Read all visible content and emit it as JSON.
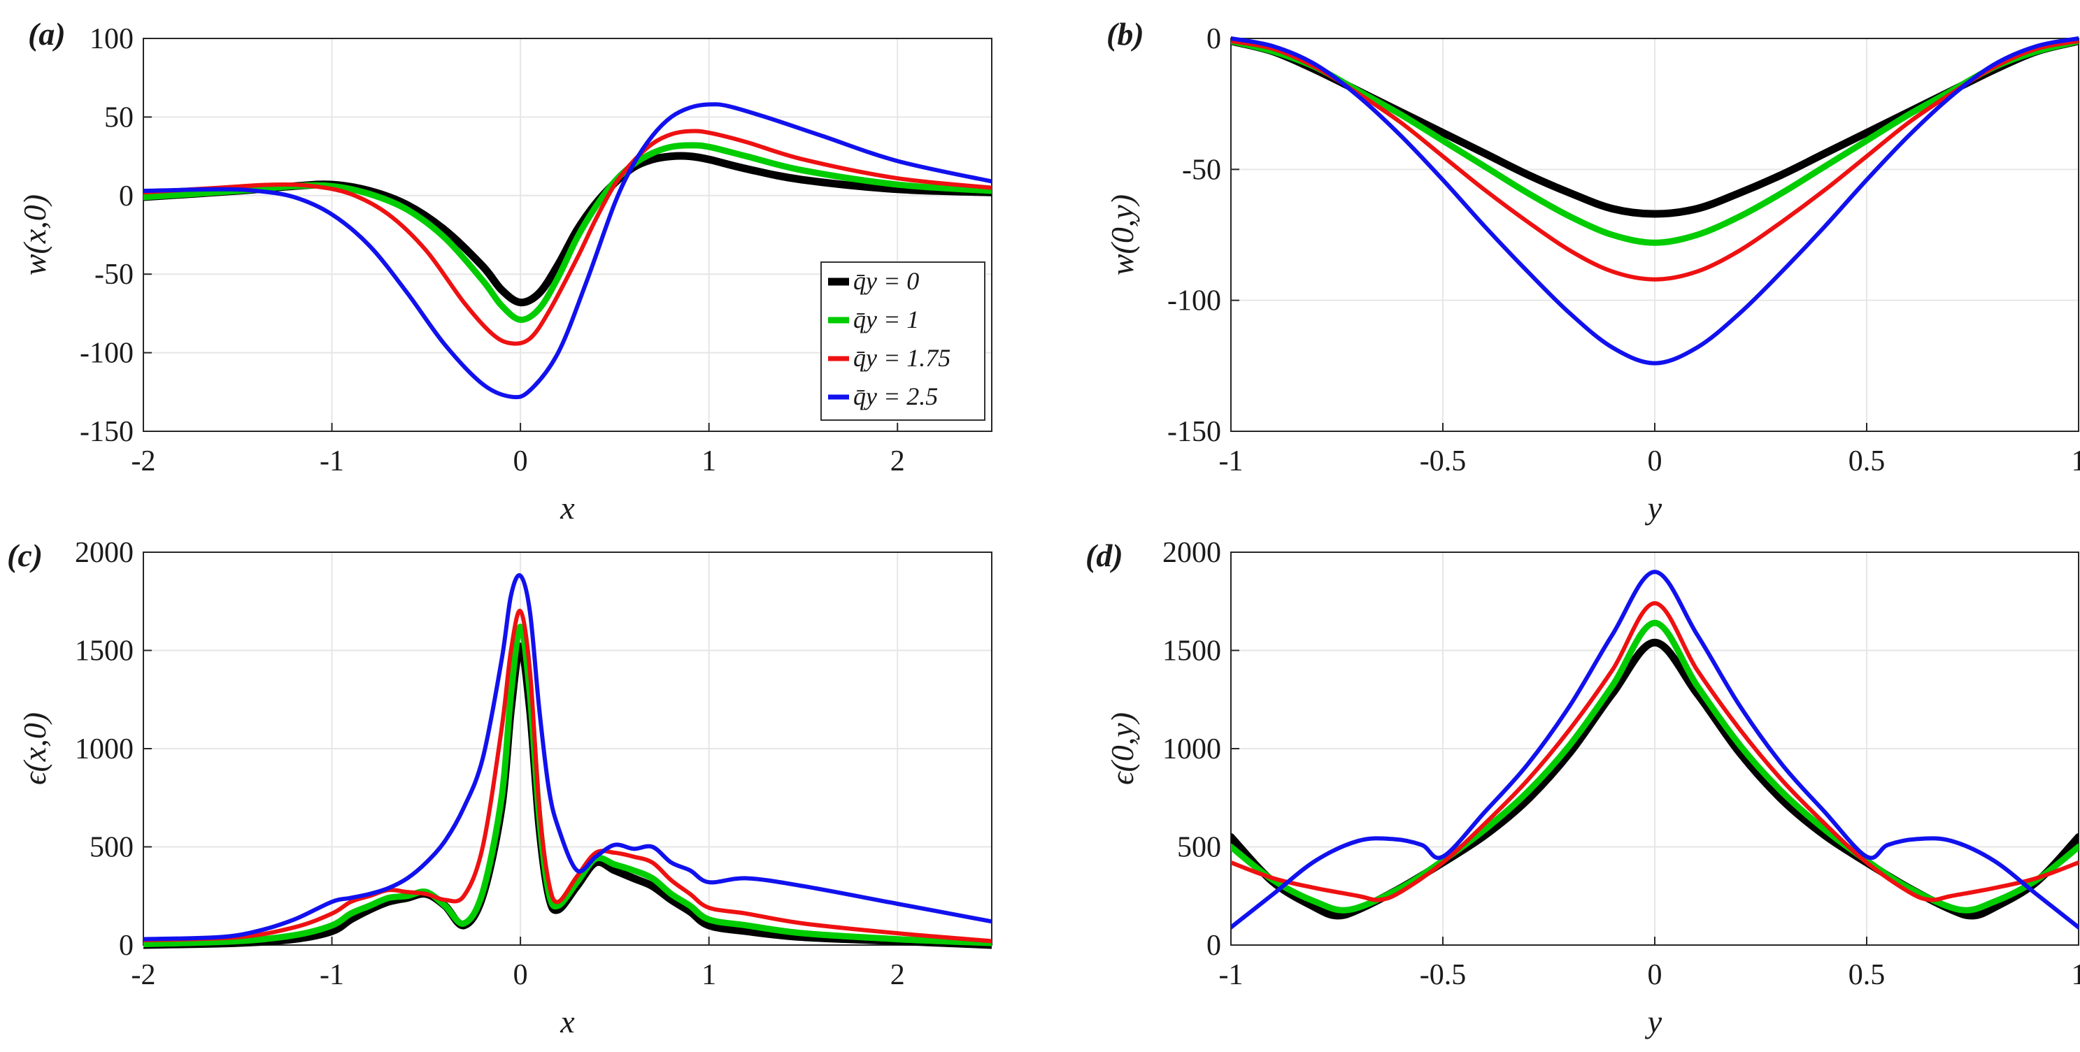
{
  "figure": {
    "legend_title": ""
  },
  "legend": {
    "entries": [
      {
        "label": "q̄y = 0",
        "color": "#000000"
      },
      {
        "label": "q̄y = 1",
        "color": "#00cc00"
      },
      {
        "label": "q̄y = 1.75",
        "color": "#ee1111"
      },
      {
        "label": "q̄y = 2.5",
        "color": "#1111ee"
      }
    ]
  },
  "chart_data": [
    {
      "panel": "(a)",
      "type": "line",
      "xlabel": "x",
      "ylabel": "w(x,0)",
      "xlim": [
        -2,
        2.5
      ],
      "ylim": [
        -150,
        100
      ],
      "xticks": [
        -2,
        -1,
        0,
        1,
        2
      ],
      "yticks": [
        -150,
        -100,
        -50,
        0,
        50,
        100
      ],
      "legend": "bottom-right",
      "series": [
        {
          "name": "q̄y = 0",
          "color": "#000000",
          "width": 11,
          "x": [
            -2,
            -1.5,
            -1.2,
            -1.0,
            -0.8,
            -0.6,
            -0.4,
            -0.2,
            -0.1,
            0,
            0.1,
            0.2,
            0.3,
            0.4,
            0.5,
            0.6,
            0.7,
            0.8,
            0.9,
            1.0,
            1.2,
            1.5,
            2.0,
            2.5
          ],
          "y": [
            -1,
            3,
            6,
            7,
            3,
            -6,
            -22,
            -45,
            -60,
            -68,
            -62,
            -44,
            -22,
            -5,
            8,
            18,
            23,
            25,
            25,
            23,
            17,
            10,
            4,
            2
          ]
        },
        {
          "name": "q̄y = 1",
          "color": "#00cc00",
          "width": 9,
          "x": [
            -2,
            -1.5,
            -1.2,
            -1.0,
            -0.8,
            -0.6,
            -0.4,
            -0.2,
            -0.1,
            0,
            0.1,
            0.2,
            0.3,
            0.4,
            0.5,
            0.6,
            0.7,
            0.8,
            0.9,
            1.0,
            1.2,
            1.5,
            2.0,
            2.5
          ],
          "y": [
            -1,
            3,
            6,
            6,
            1,
            -9,
            -27,
            -54,
            -70,
            -79,
            -72,
            -52,
            -27,
            -7,
            9,
            20,
            27,
            31,
            32,
            31,
            25,
            16,
            7,
            3
          ]
        },
        {
          "name": "q̄y = 1.75",
          "color": "#ee1111",
          "width": 6,
          "x": [
            -2,
            -1.6,
            -1.3,
            -1.1,
            -0.9,
            -0.7,
            -0.5,
            -0.3,
            -0.15,
            -0.05,
            0.05,
            0.15,
            0.3,
            0.4,
            0.5,
            0.6,
            0.7,
            0.8,
            0.9,
            1.0,
            1.2,
            1.5,
            2.0,
            2.5
          ],
          "y": [
            2,
            5,
            7,
            6,
            1,
            -12,
            -35,
            -68,
            -88,
            -94,
            -91,
            -74,
            -40,
            -15,
            7,
            22,
            33,
            39,
            41,
            40,
            34,
            23,
            11,
            5
          ]
        },
        {
          "name": "q̄y = 2.5",
          "color": "#1111ee",
          "width": 6,
          "x": [
            -2,
            -1.6,
            -1.4,
            -1.2,
            -1.0,
            -0.8,
            -0.6,
            -0.4,
            -0.2,
            -0.05,
            0.05,
            0.2,
            0.35,
            0.5,
            0.6,
            0.7,
            0.8,
            0.9,
            1.0,
            1.1,
            1.3,
            1.6,
            2.0,
            2.5
          ],
          "y": [
            3,
            4,
            3,
            -1,
            -12,
            -32,
            -62,
            -95,
            -120,
            -128,
            -124,
            -100,
            -55,
            -5,
            20,
            38,
            50,
            56,
            58,
            57,
            50,
            38,
            22,
            9
          ]
        }
      ]
    },
    {
      "panel": "(b)",
      "type": "line",
      "xlabel": "y",
      "ylabel": "w(0,y)",
      "xlim": [
        -1,
        1
      ],
      "ylim": [
        -150,
        0
      ],
      "xticks": [
        -1,
        -0.5,
        0,
        0.5,
        1
      ],
      "yticks": [
        -150,
        -100,
        -50,
        0
      ],
      "series": [
        {
          "name": "q̄y = 0",
          "color": "#000000",
          "width": 11,
          "x": [
            -1,
            -0.9,
            -0.8,
            -0.7,
            -0.6,
            -0.5,
            -0.4,
            -0.3,
            -0.2,
            -0.1,
            0,
            0.1,
            0.2,
            0.3,
            0.4,
            0.5,
            0.6,
            0.7,
            0.8,
            0.9,
            1
          ],
          "y": [
            -1,
            -5,
            -12,
            -20,
            -28,
            -36,
            -44,
            -52,
            -59,
            -65,
            -67,
            -65,
            -59,
            -52,
            -44,
            -36,
            -28,
            -20,
            -12,
            -5,
            -1
          ]
        },
        {
          "name": "q̄y = 1",
          "color": "#00cc00",
          "width": 9,
          "x": [
            -1,
            -0.9,
            -0.8,
            -0.7,
            -0.6,
            -0.5,
            -0.4,
            -0.3,
            -0.2,
            -0.1,
            0,
            0.1,
            0.2,
            0.3,
            0.4,
            0.5,
            0.6,
            0.7,
            0.8,
            0.9,
            1
          ],
          "y": [
            -1,
            -5,
            -11,
            -20,
            -29,
            -39,
            -49,
            -59,
            -68,
            -75,
            -78,
            -75,
            -68,
            -59,
            -49,
            -39,
            -29,
            -20,
            -11,
            -5,
            -1
          ]
        },
        {
          "name": "q̄y = 1.75",
          "color": "#ee1111",
          "width": 6,
          "x": [
            -1,
            -0.9,
            -0.8,
            -0.7,
            -0.6,
            -0.5,
            -0.4,
            -0.3,
            -0.2,
            -0.1,
            0,
            0.1,
            0.2,
            0.3,
            0.4,
            0.5,
            0.6,
            0.7,
            0.8,
            0.9,
            1
          ],
          "y": [
            -1,
            -4,
            -11,
            -21,
            -32,
            -45,
            -58,
            -70,
            -81,
            -89,
            -92,
            -89,
            -81,
            -70,
            -58,
            -45,
            -32,
            -21,
            -11,
            -4,
            -1
          ]
        },
        {
          "name": "q̄y = 2.5",
          "color": "#1111ee",
          "width": 6,
          "x": [
            -1,
            -0.9,
            -0.8,
            -0.7,
            -0.6,
            -0.5,
            -0.4,
            -0.3,
            -0.2,
            -0.1,
            0,
            0.1,
            0.2,
            0.3,
            0.4,
            0.5,
            0.6,
            0.7,
            0.8,
            0.9,
            1
          ],
          "y": [
            0,
            -3,
            -10,
            -22,
            -37,
            -54,
            -72,
            -89,
            -105,
            -118,
            -124,
            -118,
            -105,
            -89,
            -72,
            -54,
            -37,
            -22,
            -10,
            -3,
            0
          ]
        }
      ]
    },
    {
      "panel": "(c)",
      "type": "line",
      "xlabel": "x",
      "ylabel": "ϵ(x,0)",
      "xlim": [
        -2,
        2.5
      ],
      "ylim": [
        0,
        2000
      ],
      "xticks": [
        -2,
        -1,
        0,
        1,
        2
      ],
      "yticks": [
        0,
        500,
        1000,
        1500,
        2000
      ],
      "series": [
        {
          "name": "q̄y = 0",
          "color": "#000000",
          "width": 11,
          "x": [
            -2,
            -1.5,
            -1.2,
            -1.0,
            -0.9,
            -0.8,
            -0.7,
            -0.6,
            -0.5,
            -0.4,
            -0.3,
            -0.2,
            -0.1,
            -0.05,
            0,
            0.05,
            0.1,
            0.15,
            0.2,
            0.3,
            0.4,
            0.5,
            0.6,
            0.7,
            0.8,
            0.9,
            1.0,
            1.2,
            1.5,
            2.0,
            2.5
          ],
          "y": [
            0,
            10,
            30,
            70,
            130,
            180,
            220,
            240,
            260,
            200,
            100,
            250,
            700,
            1200,
            1520,
            1200,
            600,
            250,
            180,
            300,
            420,
            380,
            340,
            300,
            230,
            170,
            100,
            70,
            40,
            20,
            0
          ]
        },
        {
          "name": "q̄y = 1",
          "color": "#00cc00",
          "width": 9,
          "x": [
            -2,
            -1.5,
            -1.2,
            -1.0,
            -0.9,
            -0.8,
            -0.7,
            -0.6,
            -0.5,
            -0.4,
            -0.3,
            -0.2,
            -0.1,
            -0.05,
            0,
            0.05,
            0.1,
            0.15,
            0.2,
            0.3,
            0.4,
            0.5,
            0.6,
            0.7,
            0.8,
            0.9,
            1.0,
            1.2,
            1.5,
            2.0,
            2.5
          ],
          "y": [
            5,
            20,
            50,
            100,
            160,
            200,
            240,
            250,
            270,
            200,
            110,
            270,
            750,
            1280,
            1620,
            1280,
            650,
            270,
            200,
            320,
            440,
            410,
            380,
            340,
            260,
            200,
            130,
            100,
            60,
            30,
            10
          ]
        },
        {
          "name": "q̄y = 1.75",
          "color": "#ee1111",
          "width": 6,
          "x": [
            -2,
            -1.5,
            -1.2,
            -1.0,
            -0.9,
            -0.8,
            -0.7,
            -0.6,
            -0.5,
            -0.4,
            -0.3,
            -0.2,
            -0.1,
            -0.05,
            0,
            0.05,
            0.1,
            0.15,
            0.2,
            0.3,
            0.4,
            0.5,
            0.6,
            0.7,
            0.8,
            0.9,
            1.0,
            1.2,
            1.5,
            2.0,
            2.5
          ],
          "y": [
            25,
            40,
            90,
            160,
            220,
            250,
            280,
            270,
            260,
            230,
            250,
            500,
            1100,
            1500,
            1700,
            1400,
            700,
            320,
            220,
            350,
            470,
            470,
            450,
            420,
            330,
            260,
            190,
            160,
            110,
            60,
            20
          ]
        },
        {
          "name": "q̄y = 2.5",
          "color": "#1111ee",
          "width": 6,
          "x": [
            -2,
            -1.6,
            -1.4,
            -1.2,
            -1.0,
            -0.9,
            -0.8,
            -0.7,
            -0.6,
            -0.5,
            -0.4,
            -0.3,
            -0.2,
            -0.1,
            -0.05,
            0,
            0.05,
            0.1,
            0.15,
            0.2,
            0.3,
            0.4,
            0.5,
            0.6,
            0.7,
            0.8,
            0.9,
            1.0,
            1.2,
            1.5,
            2.0,
            2.5
          ],
          "y": [
            30,
            40,
            70,
            130,
            220,
            240,
            260,
            290,
            340,
            420,
            530,
            700,
            950,
            1450,
            1780,
            1880,
            1700,
            1200,
            800,
            600,
            380,
            450,
            510,
            490,
            500,
            420,
            380,
            320,
            340,
            300,
            210,
            120
          ]
        }
      ]
    },
    {
      "panel": "(d)",
      "type": "line",
      "xlabel": "y",
      "ylabel": "ϵ(0,y)",
      "xlim": [
        -1,
        1
      ],
      "ylim": [
        0,
        2000
      ],
      "xticks": [
        -1,
        -0.5,
        0,
        0.5,
        1
      ],
      "yticks": [
        0,
        500,
        1000,
        1500,
        2000
      ],
      "series": [
        {
          "name": "q̄y = 0",
          "color": "#000000",
          "width": 11,
          "x": [
            -1,
            -0.9,
            -0.8,
            -0.75,
            -0.7,
            -0.6,
            -0.5,
            -0.4,
            -0.3,
            -0.2,
            -0.1,
            0,
            0.1,
            0.2,
            0.3,
            0.4,
            0.5,
            0.6,
            0.7,
            0.75,
            0.8,
            0.9,
            1
          ],
          "y": [
            550,
            320,
            190,
            150,
            180,
            290,
            420,
            560,
            740,
            980,
            1280,
            1540,
            1280,
            980,
            740,
            560,
            420,
            290,
            180,
            150,
            190,
            320,
            550
          ]
        },
        {
          "name": "q̄y = 1",
          "color": "#00cc00",
          "width": 9,
          "x": [
            -1,
            -0.9,
            -0.8,
            -0.72,
            -0.6,
            -0.5,
            -0.4,
            -0.3,
            -0.2,
            -0.1,
            0,
            0.1,
            0.2,
            0.3,
            0.4,
            0.5,
            0.6,
            0.72,
            0.8,
            0.9,
            1
          ],
          "y": [
            500,
            330,
            220,
            180,
            290,
            430,
            590,
            780,
            1020,
            1320,
            1640,
            1320,
            1020,
            780,
            590,
            430,
            290,
            180,
            220,
            330,
            500
          ]
        },
        {
          "name": "q̄y = 1.75",
          "color": "#ee1111",
          "width": 6,
          "x": [
            -1,
            -0.9,
            -0.8,
            -0.7,
            -0.65,
            -0.6,
            -0.5,
            -0.4,
            -0.3,
            -0.2,
            -0.1,
            0,
            0.1,
            0.2,
            0.3,
            0.4,
            0.5,
            0.6,
            0.65,
            0.7,
            0.8,
            0.9,
            1
          ],
          "y": [
            420,
            340,
            290,
            250,
            230,
            270,
            420,
            620,
            840,
            1100,
            1400,
            1740,
            1400,
            1100,
            840,
            620,
            420,
            270,
            230,
            250,
            290,
            340,
            420
          ]
        },
        {
          "name": "q̄y = 2.5",
          "color": "#1111ee",
          "width": 6,
          "x": [
            -1,
            -0.9,
            -0.8,
            -0.7,
            -0.62,
            -0.55,
            -0.5,
            -0.4,
            -0.3,
            -0.2,
            -0.1,
            0,
            0.1,
            0.2,
            0.3,
            0.4,
            0.5,
            0.55,
            0.62,
            0.7,
            0.8,
            0.9,
            1
          ],
          "y": [
            90,
            260,
            430,
            530,
            540,
            510,
            450,
            680,
            920,
            1220,
            1580,
            1900,
            1580,
            1220,
            920,
            680,
            450,
            510,
            540,
            530,
            430,
            260,
            90
          ]
        }
      ]
    }
  ]
}
